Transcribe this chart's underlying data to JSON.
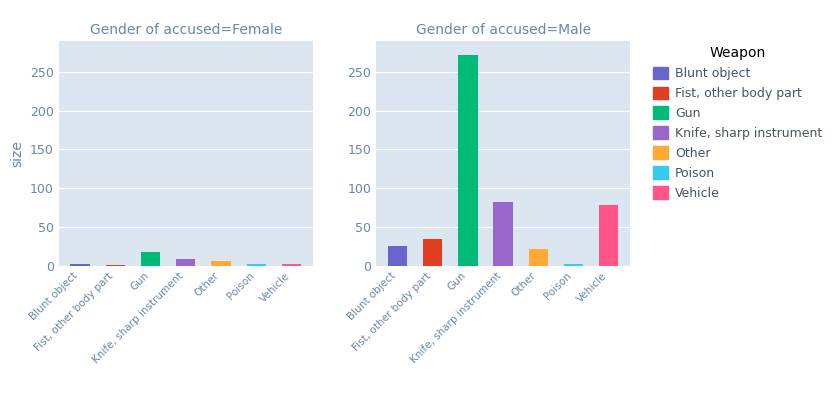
{
  "categories": [
    "Blunt object",
    "Fist, other body part",
    "Gun",
    "Knife, sharp instrument",
    "Other",
    "Poison",
    "Vehicle"
  ],
  "female_values": [
    2,
    1,
    18,
    9,
    6,
    2,
    2
  ],
  "male_values": [
    25,
    35,
    272,
    82,
    22,
    3,
    78
  ],
  "colors": [
    "#6666cc",
    "#e04020",
    "#00bb77",
    "#9966cc",
    "#ffaa33",
    "#33ccee",
    "#ff5588"
  ],
  "title_female": "Gender of accused=Female",
  "title_male": "Gender of accused=Male",
  "xlabel": "Weapon",
  "ylabel": "size",
  "legend_title": "Weapon",
  "legend_labels": [
    "Blunt object",
    "Fist, other body part",
    "Gun",
    "Knife, sharp instrument",
    "Other",
    "Poison",
    "Vehicle"
  ],
  "bg_color": "#dce6f0",
  "fig_bg_color": "#ffffff",
  "yticks": [
    0,
    50,
    100,
    150,
    200,
    250
  ],
  "ylim": [
    0,
    290
  ]
}
